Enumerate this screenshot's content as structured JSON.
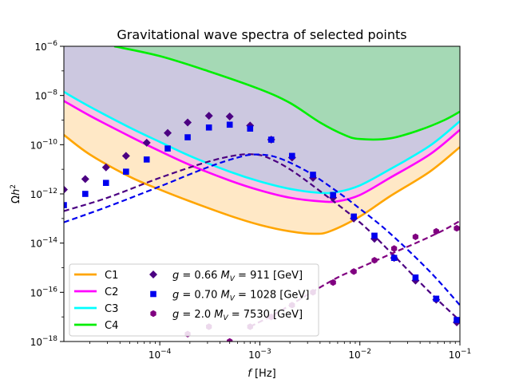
{
  "chart_data": {
    "type": "line",
    "title": "Gravitational wave spectra of selected points",
    "xlabel": "f [Hz]",
    "ylabel": "Ωh²",
    "xscale": "log",
    "yscale": "log",
    "xlim": [
      1.1e-05,
      0.1
    ],
    "ylim": [
      1e-18,
      1e-06
    ],
    "x_ticks": [
      {
        "value": 0.0001,
        "base": "10",
        "exp": "−4"
      },
      {
        "value": 0.001,
        "base": "10",
        "exp": "−3"
      },
      {
        "value": 0.01,
        "base": "10",
        "exp": "−2"
      },
      {
        "value": 0.1,
        "base": "10",
        "exp": "−1"
      }
    ],
    "y_ticks": [
      {
        "value": 1e-18,
        "base": "10",
        "exp": "−18"
      },
      {
        "value": 1e-16,
        "base": "10",
        "exp": "−16"
      },
      {
        "value": 1e-14,
        "base": "10",
        "exp": "−14"
      },
      {
        "value": 1e-12,
        "base": "10",
        "exp": "−12"
      },
      {
        "value": 1e-10,
        "base": "10",
        "exp": "−10"
      },
      {
        "value": 1e-08,
        "base": "10",
        "exp": "−8"
      },
      {
        "value": 1e-06,
        "base": "10",
        "exp": "−6"
      }
    ],
    "legend_position": "lower-left",
    "sensitivity_curves": [
      {
        "name": "C1",
        "color": "#ffa500",
        "fill": "#ffe8c6",
        "x": [
          1.1e-05,
          2e-05,
          5e-05,
          0.0001,
          0.0002,
          0.0005,
          0.001,
          0.002,
          0.0035,
          0.005,
          0.01,
          0.02,
          0.05,
          0.1
        ],
        "y": [
          2.5e-10,
          4e-11,
          5e-12,
          1.5e-12,
          5e-13,
          1.3e-13,
          5.5e-14,
          3e-14,
          2.4e-14,
          3e-14,
          1.2e-13,
          8e-13,
          8e-12,
          8e-11
        ]
      },
      {
        "name": "C2",
        "color": "#ff00ff",
        "fill": "#f8c6e3",
        "x": [
          1.1e-05,
          2e-05,
          5e-05,
          0.0001,
          0.0002,
          0.0005,
          0.001,
          0.002,
          0.004,
          0.006,
          0.01,
          0.02,
          0.05,
          0.1
        ],
        "y": [
          6e-09,
          1.5e-09,
          2.2e-10,
          5.5e-11,
          1.5e-11,
          3.5e-12,
          1.4e-12,
          7e-13,
          5e-13,
          5e-13,
          9e-13,
          4.5e-12,
          4e-11,
          4e-10
        ]
      },
      {
        "name": "C3",
        "color": "#00ffff",
        "fill": "#ccc8e0",
        "x": [
          1.1e-05,
          2e-05,
          5e-05,
          0.0001,
          0.0002,
          0.0005,
          0.001,
          0.002,
          0.004,
          0.006,
          0.01,
          0.02,
          0.05,
          0.1
        ],
        "y": [
          1.4e-08,
          3.5e-09,
          5e-10,
          1.3e-10,
          3.5e-11,
          8e-12,
          3.2e-12,
          1.6e-12,
          1.1e-12,
          1.2e-12,
          2.2e-12,
          1e-11,
          9e-11,
          9e-10
        ]
      },
      {
        "name": "C4",
        "color": "#00ee00",
        "fill": "#a5d9b5",
        "x": [
          3.5e-05,
          0.0001,
          0.0003,
          0.001,
          0.002,
          0.004,
          0.007,
          0.01,
          0.02,
          0.04,
          0.07,
          0.1
        ],
        "y": [
          1e-06,
          4e-07,
          1e-07,
          1.8e-08,
          5e-09,
          8e-10,
          2.5e-10,
          1.7e-10,
          1.8e-10,
          4e-10,
          1e-09,
          2.2e-09
        ]
      }
    ],
    "model_series": [
      {
        "name": "g = 0.66 M_V = 911 [GeV]",
        "label_parts": [
          "g",
          " = 0.66 ",
          "M",
          "V",
          " = 911 [GeV]"
        ],
        "color": "#4b0082",
        "marker": "diamond",
        "x": [
          1.1e-05,
          1.8e-05,
          2.9e-05,
          4.6e-05,
          7.4e-05,
          0.00012,
          0.00019,
          0.00031,
          0.0005,
          0.0008,
          0.0013,
          0.0021,
          0.0034,
          0.0054,
          0.0087,
          0.014,
          0.022,
          0.036,
          0.058,
          0.093
        ],
        "y": [
          1.5e-12,
          4e-12,
          1.2e-11,
          3.5e-11,
          1.2e-10,
          3e-10,
          8e-10,
          1.5e-09,
          1.4e-09,
          6e-10,
          1.6e-10,
          3e-11,
          4.5e-12,
          7e-13,
          1e-13,
          1.5e-14,
          2.5e-15,
          3e-16,
          5e-17,
          6e-18
        ],
        "model_x": [
          1.1e-05,
          3e-05,
          0.0001,
          0.0003,
          0.0006,
          0.0009,
          0.0012,
          0.002,
          0.004,
          0.01,
          0.02,
          0.05,
          0.1
        ],
        "model_y": [
          2e-13,
          7e-13,
          4.5e-12,
          2e-11,
          3.8e-11,
          4e-11,
          3e-11,
          1e-11,
          1.3e-12,
          7e-14,
          4.5e-15,
          1e-16,
          7e-18
        ]
      },
      {
        "name": "g = 0.70 M_V = 1028 [GeV]",
        "label_parts": [
          "g",
          " = 0.70 ",
          "M",
          "V",
          " = 1028 [GeV]"
        ],
        "color": "#0000ee",
        "marker": "square",
        "x": [
          1.1e-05,
          1.8e-05,
          2.9e-05,
          4.6e-05,
          7.4e-05,
          0.00012,
          0.00019,
          0.00031,
          0.0005,
          0.0008,
          0.0013,
          0.0021,
          0.0034,
          0.0054,
          0.0087,
          0.014,
          0.022,
          0.036,
          0.058,
          0.093
        ],
        "y": [
          3.5e-13,
          1e-12,
          2.8e-12,
          8e-12,
          2.5e-11,
          7e-11,
          2e-10,
          5e-10,
          6.5e-10,
          4.5e-10,
          1.6e-10,
          3.5e-11,
          6e-12,
          9e-13,
          1.2e-13,
          2e-14,
          2.5e-15,
          4e-16,
          5.5e-17,
          7.5e-18
        ],
        "model_x": [
          1.1e-05,
          3e-05,
          0.0001,
          0.0003,
          0.0006,
          0.0009,
          0.0015,
          0.003,
          0.006,
          0.01,
          0.02,
          0.05,
          0.1
        ],
        "model_y": [
          7e-14,
          3e-13,
          2e-12,
          1.2e-11,
          3e-11,
          4e-11,
          3e-11,
          8e-12,
          1.2e-12,
          2.5e-13,
          2.5e-14,
          7e-16,
          3e-17
        ]
      },
      {
        "name": "g = 2.0 M_V = 7530 [GeV]",
        "label_parts": [
          "g",
          " = 2.0 ",
          "M",
          "V",
          " = 7530 [GeV]"
        ],
        "color": "#800080",
        "marker": "hexagon",
        "x": [
          0.00019,
          0.00031,
          0.0005,
          0.0008,
          0.0013,
          0.0021,
          0.0034,
          0.0054,
          0.0087,
          0.014,
          0.022,
          0.036,
          0.058,
          0.093
        ],
        "y": [
          2e-18,
          4e-18,
          1e-18,
          4e-18,
          1e-17,
          3e-17,
          1e-16,
          2.5e-16,
          7e-16,
          2e-15,
          6e-15,
          1.8e-14,
          3e-14,
          4e-14
        ],
        "model_x": [
          0.0008,
          0.0015,
          0.003,
          0.006,
          0.01,
          0.02,
          0.04,
          0.07,
          0.1
        ],
        "model_y": [
          4e-18,
          1.5e-17,
          8e-17,
          4e-16,
          1e-15,
          3.5e-15,
          1.2e-14,
          3.5e-14,
          8e-14
        ]
      }
    ]
  }
}
